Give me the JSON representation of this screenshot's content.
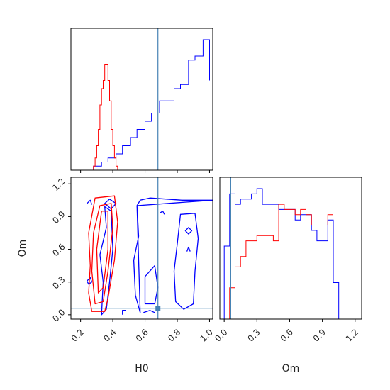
{
  "chart_data": {
    "type": "corner",
    "parameters": [
      "H0",
      "Om"
    ],
    "truths": {
      "H0": 0.68,
      "Om": 0.06
    },
    "colors": {
      "posterior_a": "#0000ff",
      "posterior_b": "#ff0000",
      "truth": "#4682b4"
    },
    "axes": {
      "H0": {
        "label": "H0",
        "range": [
          0.14,
          1.02
        ],
        "ticks": [
          "0.2",
          "0.4",
          "0.6",
          "0.8",
          "1.0"
        ],
        "tick_values": [
          0.2,
          0.4,
          0.6,
          0.8,
          1.0
        ]
      },
      "Om": {
        "label": "Om",
        "range": [
          -0.04,
          1.26
        ],
        "ticks": [
          "0.0",
          "0.3",
          "0.6",
          "0.9",
          "1.2"
        ],
        "tick_values": [
          0.0,
          0.3,
          0.6,
          0.9,
          1.2
        ]
      }
    },
    "hist_H0": {
      "blue": {
        "edges": [
          0.23,
          0.28,
          0.33,
          0.37,
          0.42,
          0.46,
          0.51,
          0.55,
          0.6,
          0.64,
          0.69,
          0.73,
          0.78,
          0.82,
          0.87,
          0.91,
          0.96,
          1.0
        ],
        "counts": [
          0,
          1,
          2,
          3,
          4,
          6,
          8,
          10,
          12,
          14,
          17,
          17,
          20,
          21,
          27,
          28,
          32,
          22
        ]
      },
      "red": {
        "edges": [
          0.27,
          0.28,
          0.29,
          0.3,
          0.31,
          0.32,
          0.33,
          0.34,
          0.35,
          0.36,
          0.37,
          0.38,
          0.39,
          0.4,
          0.41,
          0.42,
          0.43
        ],
        "counts": [
          0,
          1,
          3,
          6,
          10,
          16,
          20,
          22,
          26,
          26,
          22,
          17,
          10,
          6,
          3,
          1
        ]
      }
    },
    "hist_Om": {
      "blue": {
        "edges": [
          0.0,
          0.05,
          0.1,
          0.15,
          0.2,
          0.25,
          0.3,
          0.35,
          0.4,
          0.45,
          0.5,
          0.55,
          0.6,
          0.65,
          0.7,
          0.75,
          0.8,
          0.85,
          0.9,
          0.95,
          1.0,
          1.05
        ],
        "counts": [
          14,
          24,
          22,
          23,
          23,
          24,
          25,
          22,
          22,
          22,
          21,
          21,
          21,
          19,
          20,
          20,
          17,
          15,
          15,
          19,
          7
        ]
      },
      "red": {
        "edges": [
          0.0,
          0.05,
          0.1,
          0.15,
          0.2,
          0.25,
          0.3,
          0.35,
          0.4,
          0.45,
          0.5,
          0.55,
          0.6,
          0.65,
          0.7,
          0.75,
          0.8,
          0.85,
          0.9,
          0.95,
          1.0
        ],
        "counts": [
          0,
          6,
          10,
          12,
          15,
          15,
          16,
          16,
          16,
          15,
          22,
          21,
          21,
          20,
          21,
          20,
          18,
          18,
          18,
          20,
          20
        ]
      }
    },
    "contours": {
      "red": [
        [
          [
            0.27,
            0.03
          ],
          [
            0.25,
            0.2
          ],
          [
            0.26,
            0.45
          ],
          [
            0.25,
            0.75
          ],
          [
            0.29,
            1.07
          ],
          [
            0.41,
            1.09
          ],
          [
            0.43,
            0.85
          ],
          [
            0.41,
            0.5
          ],
          [
            0.37,
            0.15
          ],
          [
            0.35,
            0.03
          ]
        ],
        [
          [
            0.29,
            0.1
          ],
          [
            0.27,
            0.4
          ],
          [
            0.28,
            0.75
          ],
          [
            0.32,
            1.0
          ],
          [
            0.39,
            1.02
          ],
          [
            0.4,
            0.8
          ],
          [
            0.37,
            0.4
          ],
          [
            0.34,
            0.12
          ]
        ],
        [
          [
            0.31,
            0.2
          ],
          [
            0.3,
            0.6
          ],
          [
            0.33,
            0.95
          ],
          [
            0.37,
            0.95
          ],
          [
            0.37,
            0.6
          ],
          [
            0.34,
            0.25
          ]
        ]
      ],
      "blue": [
        [
          [
            0.46,
            0.0
          ],
          [
            0.46,
            0.04
          ],
          [
            0.48,
            0.04
          ]
        ],
        [
          [
            0.35,
            1.02
          ],
          [
            0.38,
            1.06
          ],
          [
            0.42,
            1.02
          ],
          [
            0.39,
            0.97
          ]
        ],
        [
          [
            0.24,
            1.02
          ],
          [
            0.26,
            1.05
          ],
          [
            0.27,
            1.01
          ]
        ],
        [
          [
            0.24,
            0.31
          ],
          [
            0.26,
            0.34
          ],
          [
            0.27,
            0.3
          ],
          [
            0.25,
            0.28
          ]
        ],
        [
          [
            0.33,
            0.0
          ],
          [
            0.34,
            0.3
          ],
          [
            0.32,
            0.55
          ],
          [
            0.36,
            0.8
          ],
          [
            0.35,
            0.99
          ],
          [
            0.39,
            0.95
          ],
          [
            0.4,
            0.6
          ],
          [
            0.38,
            0.3
          ],
          [
            0.36,
            0.05
          ]
        ],
        [
          [
            0.55,
            1.0
          ],
          [
            0.57,
            1.05
          ],
          [
            0.63,
            1.07
          ],
          [
            0.83,
            1.05
          ],
          [
            1.02,
            1.05
          ]
        ],
        [
          [
            0.55,
            1.0
          ],
          [
            0.56,
            0.72
          ],
          [
            0.53,
            0.5
          ],
          [
            0.54,
            0.18
          ],
          [
            0.57,
            0.02
          ]
        ],
        [
          [
            0.6,
            0.1
          ],
          [
            0.6,
            0.35
          ],
          [
            0.66,
            0.45
          ],
          [
            0.68,
            0.25
          ],
          [
            0.66,
            0.1
          ]
        ],
        [
          [
            0.79,
            0.12
          ],
          [
            0.78,
            0.4
          ],
          [
            0.8,
            0.65
          ],
          [
            0.82,
            0.92
          ],
          [
            0.91,
            0.93
          ],
          [
            0.93,
            0.7
          ],
          [
            0.91,
            0.4
          ],
          [
            0.9,
            0.1
          ],
          [
            0.84,
            0.05
          ]
        ],
        [
          [
            0.59,
            0.02
          ],
          [
            0.63,
            0.04
          ],
          [
            0.66,
            0.02
          ]
        ],
        [
          [
            0.69,
            0.93
          ],
          [
            0.71,
            0.95
          ],
          [
            0.72,
            0.92
          ]
        ],
        [
          [
            0.85,
            0.77
          ],
          [
            0.87,
            0.8
          ],
          [
            0.89,
            0.77
          ],
          [
            0.87,
            0.74
          ]
        ],
        [
          [
            0.86,
            0.58
          ],
          [
            0.87,
            0.62
          ],
          [
            0.88,
            0.58
          ]
        ]
      ]
    }
  }
}
